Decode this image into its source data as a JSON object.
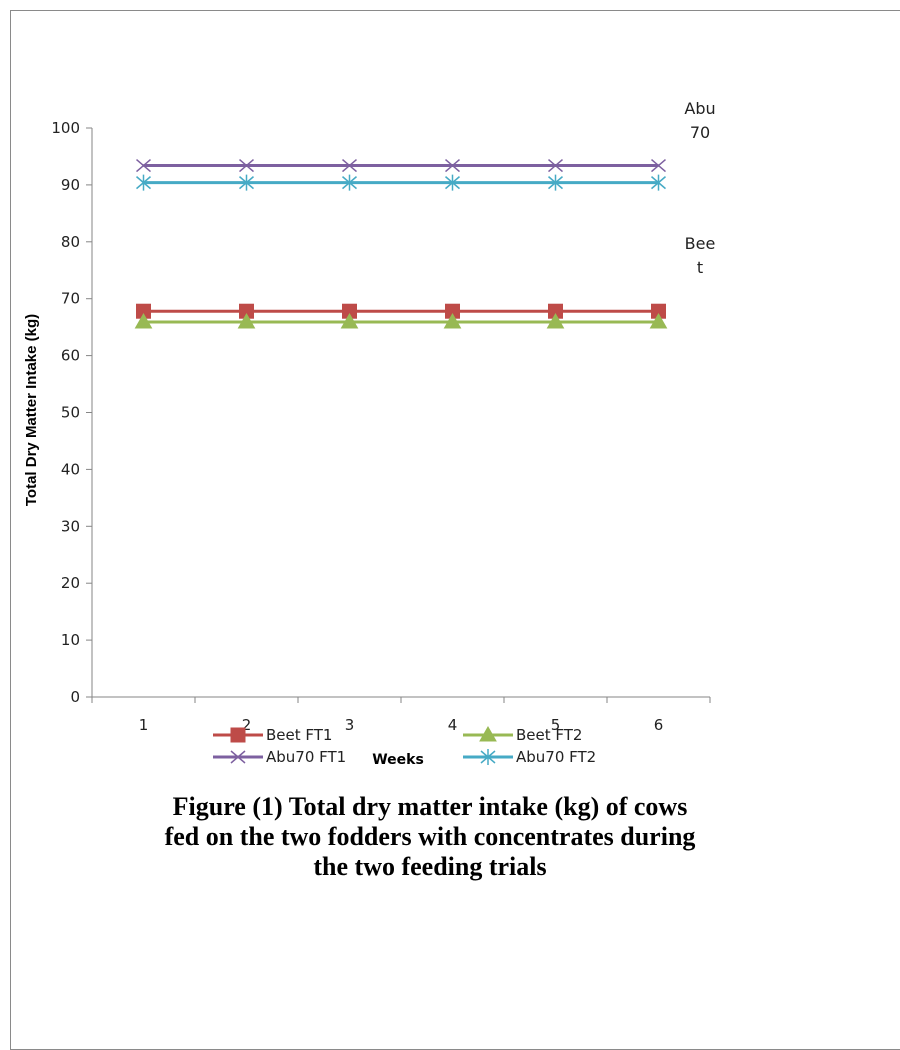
{
  "chart_data": {
    "type": "line",
    "x": [
      1,
      2,
      3,
      4,
      5,
      6
    ],
    "xlabel": "Weeks",
    "ylabel": "Total Dry Matter Intake (kg)",
    "ylim": [
      0,
      100
    ],
    "yticks": [
      0,
      10,
      20,
      30,
      40,
      50,
      60,
      70,
      80,
      90,
      100
    ],
    "xticks": [
      "1",
      "2",
      "3",
      "4",
      "5",
      "6"
    ],
    "legend_position": "bottom",
    "series": [
      {
        "name": "Beet FT1",
        "values": [
          67.8,
          67.8,
          67.8,
          67.8,
          67.8,
          67.8
        ],
        "color": "#be4b48",
        "marker": "square"
      },
      {
        "name": "Beet FT2",
        "values": [
          65.9,
          65.9,
          65.9,
          65.9,
          65.9,
          65.9
        ],
        "color": "#98b954",
        "marker": "triangle"
      },
      {
        "name": "Abu70 FT1",
        "values": [
          93.4,
          93.4,
          93.4,
          93.4,
          93.4,
          93.4
        ],
        "color": "#7d60a0",
        "marker": "x"
      },
      {
        "name": "Abu70 FT2",
        "values": [
          90.4,
          90.4,
          90.4,
          90.4,
          90.4,
          90.4
        ],
        "color": "#46aac5",
        "marker": "star"
      }
    ],
    "annotations": [
      {
        "lines": [
          "Abu",
          "70"
        ]
      },
      {
        "lines": [
          "Bee",
          "t"
        ]
      }
    ]
  },
  "caption": {
    "lines": [
      "Figure (1) Total dry matter intake (kg) of cows",
      "fed on the two fodders with concentrates during",
      "the two feeding trials"
    ]
  }
}
